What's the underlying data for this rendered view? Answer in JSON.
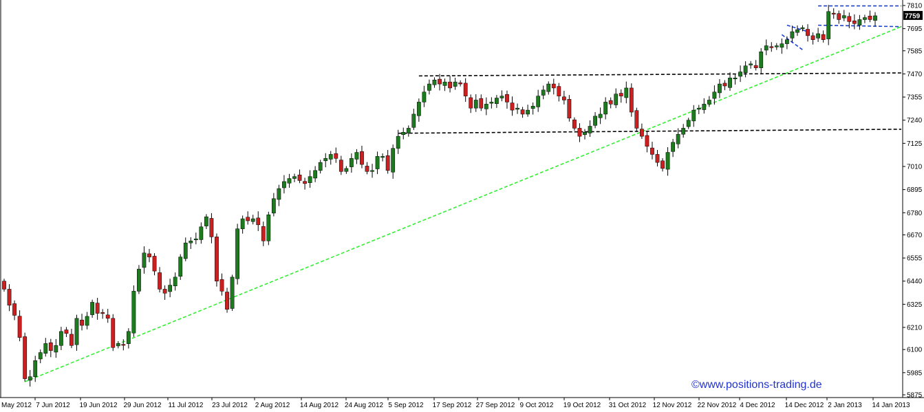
{
  "chart_data": {
    "type": "candlestick",
    "title": "",
    "xlabel": "",
    "ylabel": "",
    "ylim": [
      5840,
      7830
    ],
    "x_tick_labels": [
      "May 2012",
      "7 Jun 2012",
      "19 Jun 2012",
      "29 Jun 2012",
      "11 Jul 2012",
      "23 Jul 2012",
      "2 Aug 2012",
      "14 Aug 2012",
      "24 Aug 2012",
      "5 Sep 2012",
      "17 Sep 2012",
      "27 Sep 2012",
      "9 Oct 2012",
      "19 Oct 2012",
      "31 Oct 2012",
      "12 Nov 2012",
      "22 Nov 2012",
      "4 Dec 2012",
      "14 Dec 2012",
      "2 Jan 2013",
      "14 Jan 2013"
    ],
    "y_tick_labels": [
      "7810",
      "7695",
      "7585",
      "7470",
      "7355",
      "7240",
      "7125",
      "7010",
      "6895",
      "6780",
      "6670",
      "6555",
      "6440",
      "6325",
      "6210",
      "6100",
      "5985",
      "5875"
    ],
    "y_ticks": [
      7810,
      7695,
      7585,
      7470,
      7355,
      7240,
      7125,
      7010,
      6895,
      6780,
      6670,
      6555,
      6440,
      6325,
      6210,
      6100,
      5985,
      5875
    ],
    "last_price_label": "7759",
    "last_price": 7759,
    "grid": false,
    "up_color": "#1e7a1e",
    "down_color": "#cc1f1f",
    "closes": [
      6400,
      6320,
      6270,
      6160,
      5955,
      5965,
      6045,
      6085,
      6130,
      6095,
      6120,
      6190,
      6180,
      6120,
      6255,
      6220,
      6265,
      6335,
      6280,
      6280,
      6255,
      6110,
      6130,
      6125,
      6190,
      6390,
      6500,
      6580,
      6560,
      6490,
      6400,
      6380,
      6420,
      6460,
      6560,
      6630,
      6640,
      6650,
      6710,
      6760,
      6660,
      6440,
      6390,
      6300,
      6460,
      6700,
      6750,
      6740,
      6750,
      6720,
      6640,
      6770,
      6850,
      6900,
      6935,
      6950,
      6960,
      6940,
      6925,
      6960,
      6990,
      7030,
      7050,
      7070,
      7050,
      6985,
      7000,
      7050,
      7080,
      7020,
      6985,
      6990,
      7060,
      7060,
      6990,
      7100,
      7160,
      7180,
      7200,
      7270,
      7330,
      7380,
      7420,
      7440,
      7420,
      7430,
      7400,
      7430,
      7420,
      7360,
      7300,
      7340,
      7300,
      7320,
      7330,
      7350,
      7360,
      7330,
      7290,
      7300,
      7270,
      7290,
      7310,
      7360,
      7390,
      7420,
      7400,
      7360,
      7340,
      7250,
      7200,
      7160,
      7180,
      7210,
      7260,
      7270,
      7330,
      7320,
      7370,
      7360,
      7400,
      7280,
      7200,
      7160,
      7110,
      7070,
      7030,
      7000,
      7080,
      7130,
      7170,
      7200,
      7240,
      7290,
      7300,
      7320,
      7340,
      7380,
      7420,
      7410,
      7450,
      7450,
      7480,
      7510,
      7520,
      7500,
      7580,
      7610,
      7600,
      7610,
      7620,
      7640,
      7680,
      7690,
      7700,
      7660,
      7640,
      7670,
      7640,
      7780,
      7770,
      7740,
      7760,
      7730,
      7720,
      7740,
      7750,
      7740,
      7759
    ],
    "lines": [
      {
        "kind": "uptrend",
        "color": "#33ee33",
        "from_index": 4,
        "from_price": 5940,
        "to_price": 7705
      },
      {
        "kind": "resistance",
        "color": "#000000",
        "from_index": 76,
        "from_price": 7175,
        "to_price": 7195
      },
      {
        "kind": "resistance",
        "color": "#000000",
        "from_index": 80,
        "from_price": 7460,
        "to_price": 7475
      },
      {
        "kind": "channel",
        "color": "#1a3fd6",
        "from_index": 157,
        "from_price": 7808,
        "to_price": 7808
      },
      {
        "kind": "channel",
        "color": "#1a3fd6",
        "from_index": 157,
        "from_price": 7712,
        "to_price": 7705
      }
    ]
  },
  "watermark": "©www.positions-trading.de",
  "watermark_color": "#2233cc"
}
